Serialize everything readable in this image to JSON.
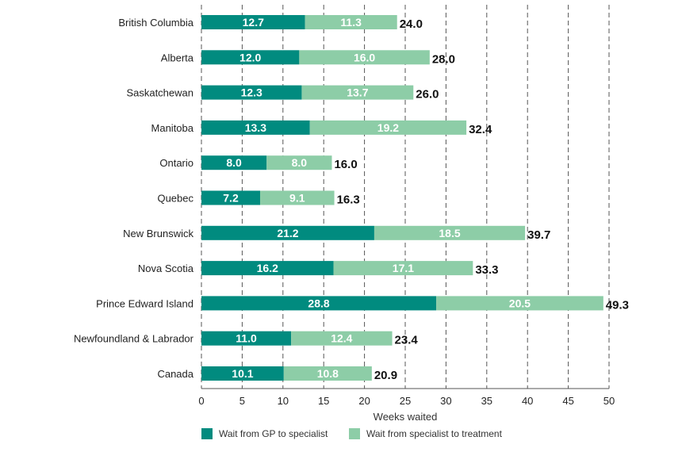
{
  "chart_data": {
    "type": "bar",
    "stacked": true,
    "orientation": "horizontal",
    "categories": [
      "British Columbia",
      "Alberta",
      "Saskatchewan",
      "Manitoba",
      "Ontario",
      "Quebec",
      "New Brunswick",
      "Nova Scotia",
      "Prince Edward Island",
      "Newfoundland & Labrador",
      "Canada"
    ],
    "series": [
      {
        "name": "Wait from GP to specialist",
        "color": "#018b7f",
        "values": [
          12.7,
          12.0,
          12.3,
          13.3,
          8.0,
          7.2,
          21.2,
          16.2,
          28.8,
          11.0,
          10.1
        ]
      },
      {
        "name": "Wait from specialist to treatment",
        "color": "#8dcda7",
        "values": [
          11.3,
          16.0,
          13.7,
          19.2,
          8.0,
          9.1,
          18.5,
          17.1,
          20.5,
          12.4,
          10.8
        ]
      }
    ],
    "totals": [
      "24.0",
      "28.0",
      "26.0",
      "32.4",
      "16.0",
      "16.3",
      "39.7",
      "33.3",
      "49.3",
      "23.4",
      "20.9"
    ],
    "segment_labels": [
      [
        "12.7",
        "12.0",
        "12.3",
        "13.3",
        "8.0",
        "7.2",
        "21.2",
        "16.2",
        "28.8",
        "11.0",
        "10.1"
      ],
      [
        "11.3",
        "16.0",
        "13.7",
        "19.2",
        "8.0",
        "9.1",
        "18.5",
        "17.1",
        "20.5",
        "12.4",
        "10.8"
      ]
    ],
    "xlabel": "Weeks waited",
    "xlim": [
      0,
      50
    ],
    "xticks": [
      0,
      5,
      10,
      15,
      20,
      25,
      30,
      35,
      40,
      45,
      50
    ],
    "grid": "vertical dashed",
    "legend_position": "bottom"
  }
}
